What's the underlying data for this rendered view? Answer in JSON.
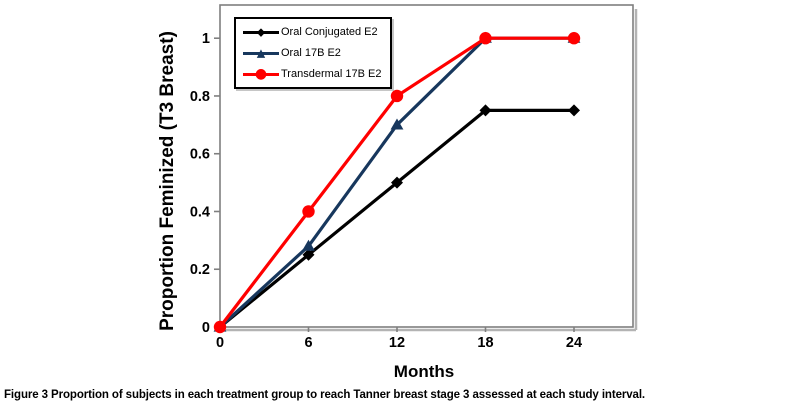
{
  "figure": {
    "caption_label": "Figure 3",
    "caption_text": " Proportion of subjects in each treatment group to reach Tanner breast stage 3 assessed at each study interval."
  },
  "chart_data": {
    "type": "line",
    "title": "",
    "xlabel": "Months",
    "ylabel": "Proportion Feminized (T3 Breast)",
    "x": [
      0,
      6,
      12,
      18,
      24
    ],
    "x_ticks": [
      0,
      6,
      12,
      18,
      24
    ],
    "y_ticks": [
      0,
      0.2,
      0.4,
      0.6,
      0.8,
      1
    ],
    "xlim": [
      0,
      28
    ],
    "ylim": [
      0,
      1.115
    ],
    "grid": false,
    "legend_position": "top-left-inside",
    "frame_color": "#7f7f7f",
    "tick_label_color": "#000000",
    "series": [
      {
        "name": "Oral Conjugated E2",
        "color": "#000000",
        "marker": "diamond",
        "marker_glyph": "◆",
        "values": [
          0,
          0.25,
          0.5,
          0.75,
          0.75
        ]
      },
      {
        "name": "Oral 17B E2",
        "color": "#17375D",
        "marker": "triangle",
        "marker_glyph": "▲",
        "values": [
          0,
          0.28,
          0.7,
          1,
          1
        ]
      },
      {
        "name": "Transdermal 17B E2",
        "color": "#FF0000",
        "marker": "circle",
        "marker_glyph": "●",
        "values": [
          0,
          0.4,
          0.8,
          1,
          1
        ]
      }
    ]
  }
}
